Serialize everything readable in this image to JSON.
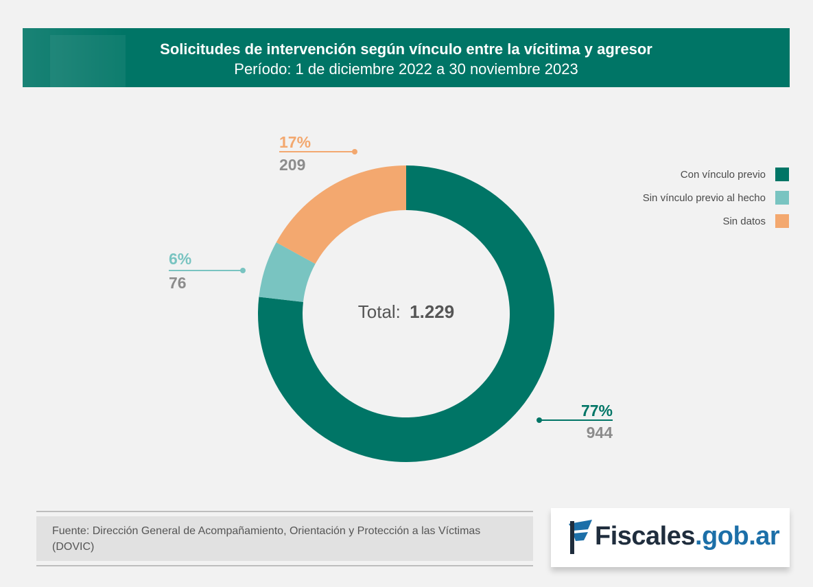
{
  "header": {
    "title": "Solicitudes de intervención según vínculo entre la vícitima y agresor",
    "subtitle": "Período: 1 de diciembre 2022 a 30 noviembre 2023"
  },
  "chart_data": {
    "type": "pie",
    "donut": true,
    "center_label": "Total:",
    "center_value": "1.229",
    "slices": [
      {
        "name": "Con vínculo previo",
        "value": 944,
        "percent_label": "77%",
        "value_label": "944",
        "color": "#007566"
      },
      {
        "name": "Sin vínculo previo al hecho",
        "value": 76,
        "percent_label": "6%",
        "value_label": "76",
        "color": "#79c4c1"
      },
      {
        "name": "Sin datos",
        "value": 209,
        "percent_label": "17%",
        "value_label": "209",
        "color": "#f3a86f"
      }
    ],
    "legend_position": "top-right"
  },
  "legend": {
    "items": [
      {
        "label": "Con vínculo previo",
        "color": "#007566"
      },
      {
        "label": "Sin vínculo previo al hecho",
        "color": "#79c4c1"
      },
      {
        "label": "Sin datos",
        "color": "#f3a86f"
      }
    ]
  },
  "source": {
    "text": "Fuente: Dirección General de Acompañamiento, Orientación y Protección a las Víctimas (DOVIC)"
  },
  "logo": {
    "part1": "Fiscales",
    "part2": ".gob.ar",
    "icon": "flag-icon"
  },
  "colors": {
    "header_bg": "#007566",
    "background": "#f2f2f2",
    "value_gray": "#8c8c8c"
  }
}
